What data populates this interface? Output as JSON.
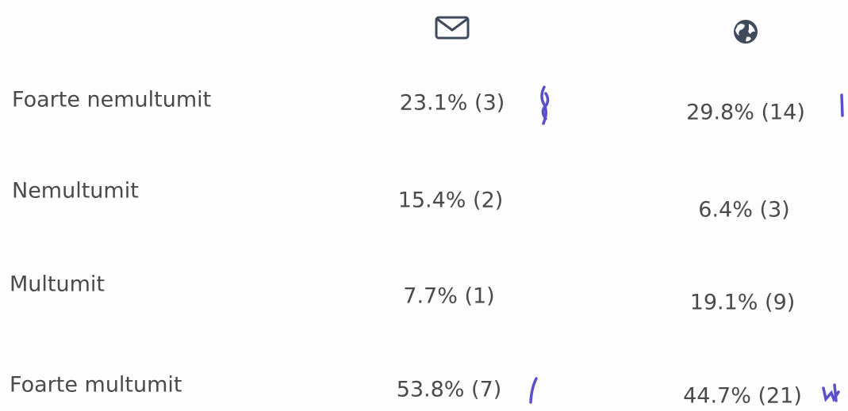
{
  "table": {
    "rows": [
      [
        "Foarte nemultumit",
        "23.1% (3)",
        "29.8% (14)"
      ],
      [
        "Nemultumit",
        "15.4% (2)",
        "6.4% (3)"
      ],
      [
        "Multumit",
        "7.7% (1)",
        "19.1% (9)"
      ],
      [
        "Foarte multumit",
        "53.8% (7)",
        "44.7% (21)"
      ]
    ]
  }
}
